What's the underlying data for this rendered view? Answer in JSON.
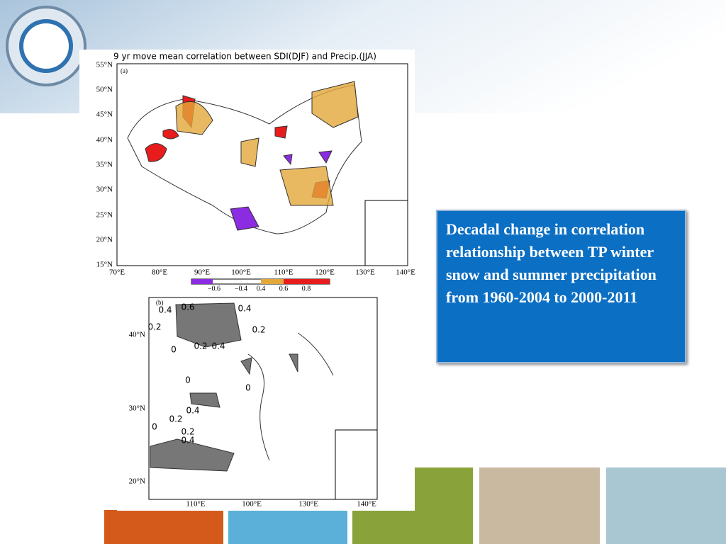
{
  "map_a": {
    "title": "9 yr move mean correlation between SDI(DJF) and Precip.(JJA)",
    "panel_label": "(a)",
    "lat_labels": [
      "55°N",
      "50°N",
      "45°N",
      "40°N",
      "35°N",
      "30°N",
      "25°N",
      "20°N",
      "15°N"
    ],
    "lon_labels": [
      "70°E",
      "80°E",
      "90°E",
      "100°E",
      "110°E",
      "120°E",
      "130°E",
      "140°E"
    ],
    "colorbar_labels": [
      "−0.6",
      "−0.4",
      "0.4",
      "0.6",
      "0.8"
    ]
  },
  "map_b": {
    "panel_label": "(b)",
    "lat_labels": [
      "40°N",
      "30°N",
      "20°N"
    ],
    "lon_labels": [
      "110°E",
      "100°E",
      "130°E",
      "140°E"
    ],
    "contour_labels": [
      "0.4",
      "0.6",
      "0.4",
      "0.2",
      "0.2",
      "0.2",
      "0.4",
      "0",
      "0",
      "0.4",
      "0.2",
      "0",
      "0.2",
      "0.4",
      "0"
    ]
  },
  "text_box": "Decadal change in correlation relationship between TP winter snow and summer precipitation from 1960-2004 to 2000-2011"
}
